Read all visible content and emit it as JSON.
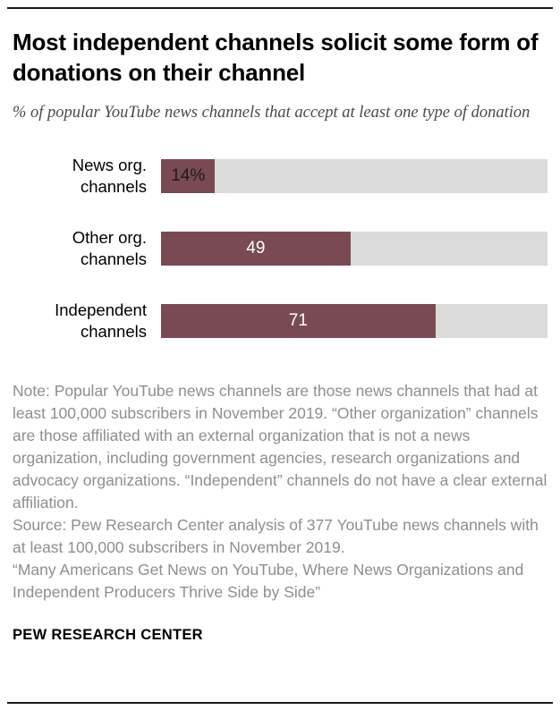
{
  "header": {
    "title": "Most independent channels solicit some form of donations on their channel",
    "subtitle": "% of popular YouTube news channels that accept at least one type of donation"
  },
  "chart_data": {
    "type": "bar",
    "orientation": "horizontal",
    "title": "Most independent channels solicit some form of donations on their channel",
    "subtitle": "% of popular YouTube news channels that accept at least one type of donation",
    "categories": [
      "News org.\nchannels",
      "Other org.\nchannels",
      "Independent\nchannels"
    ],
    "values": [
      14,
      49,
      71
    ],
    "value_labels": [
      "14%",
      "49",
      "71"
    ],
    "label_colors": [
      "#1a1a1a",
      "#ffffff",
      "#ffffff"
    ],
    "xlim": [
      0,
      100
    ],
    "bar_color": "#7a4a53",
    "track_color": "#dbdbdb",
    "grid": false,
    "legend": "none"
  },
  "notes": {
    "note": "Note: Popular YouTube news channels are those news channels that had at least 100,000 subscribers in November 2019. “Other organization” channels are those affiliated with an external organization that is not a news organization, including government agencies, research organizations and advocacy organizations. “Independent” channels do not have a clear external affiliation.",
    "source": "Source: Pew Research Center analysis of 377 YouTube news channels with at least 100,000 subscribers in November 2019.",
    "report": "“Many Americans Get News on YouTube, Where News Organizations and Independent Producers Thrive Side by Side”"
  },
  "footer": {
    "label": "PEW RESEARCH CENTER"
  }
}
